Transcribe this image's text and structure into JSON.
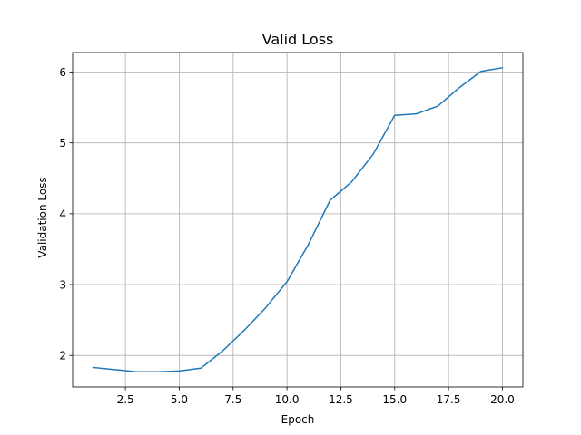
{
  "chart_data": {
    "type": "line",
    "title": "Valid Loss",
    "xlabel": "Epoch",
    "ylabel": "Validation Loss",
    "xlim": [
      0.05,
      20.95
    ],
    "ylim": [
      1.555,
      6.275
    ],
    "xticks": [
      2.5,
      5.0,
      7.5,
      10.0,
      12.5,
      15.0,
      17.5,
      20.0
    ],
    "xtick_labels": [
      "2.5",
      "5.0",
      "7.5",
      "10.0",
      "12.5",
      "15.0",
      "17.5",
      "20.0"
    ],
    "yticks": [
      2,
      3,
      4,
      5,
      6
    ],
    "ytick_labels": [
      "2",
      "3",
      "4",
      "5",
      "6"
    ],
    "grid": true,
    "color": "#1f77b4",
    "x": [
      1,
      2,
      3,
      4,
      5,
      6,
      7,
      8,
      9,
      10,
      11,
      12,
      13,
      14,
      15,
      16,
      17,
      18,
      19,
      20
    ],
    "y": [
      1.83,
      1.8,
      1.77,
      1.77,
      1.78,
      1.82,
      2.06,
      2.35,
      2.67,
      3.04,
      3.57,
      4.19,
      4.45,
      4.84,
      5.39,
      5.41,
      5.52,
      5.78,
      6.01,
      6.06
    ]
  }
}
